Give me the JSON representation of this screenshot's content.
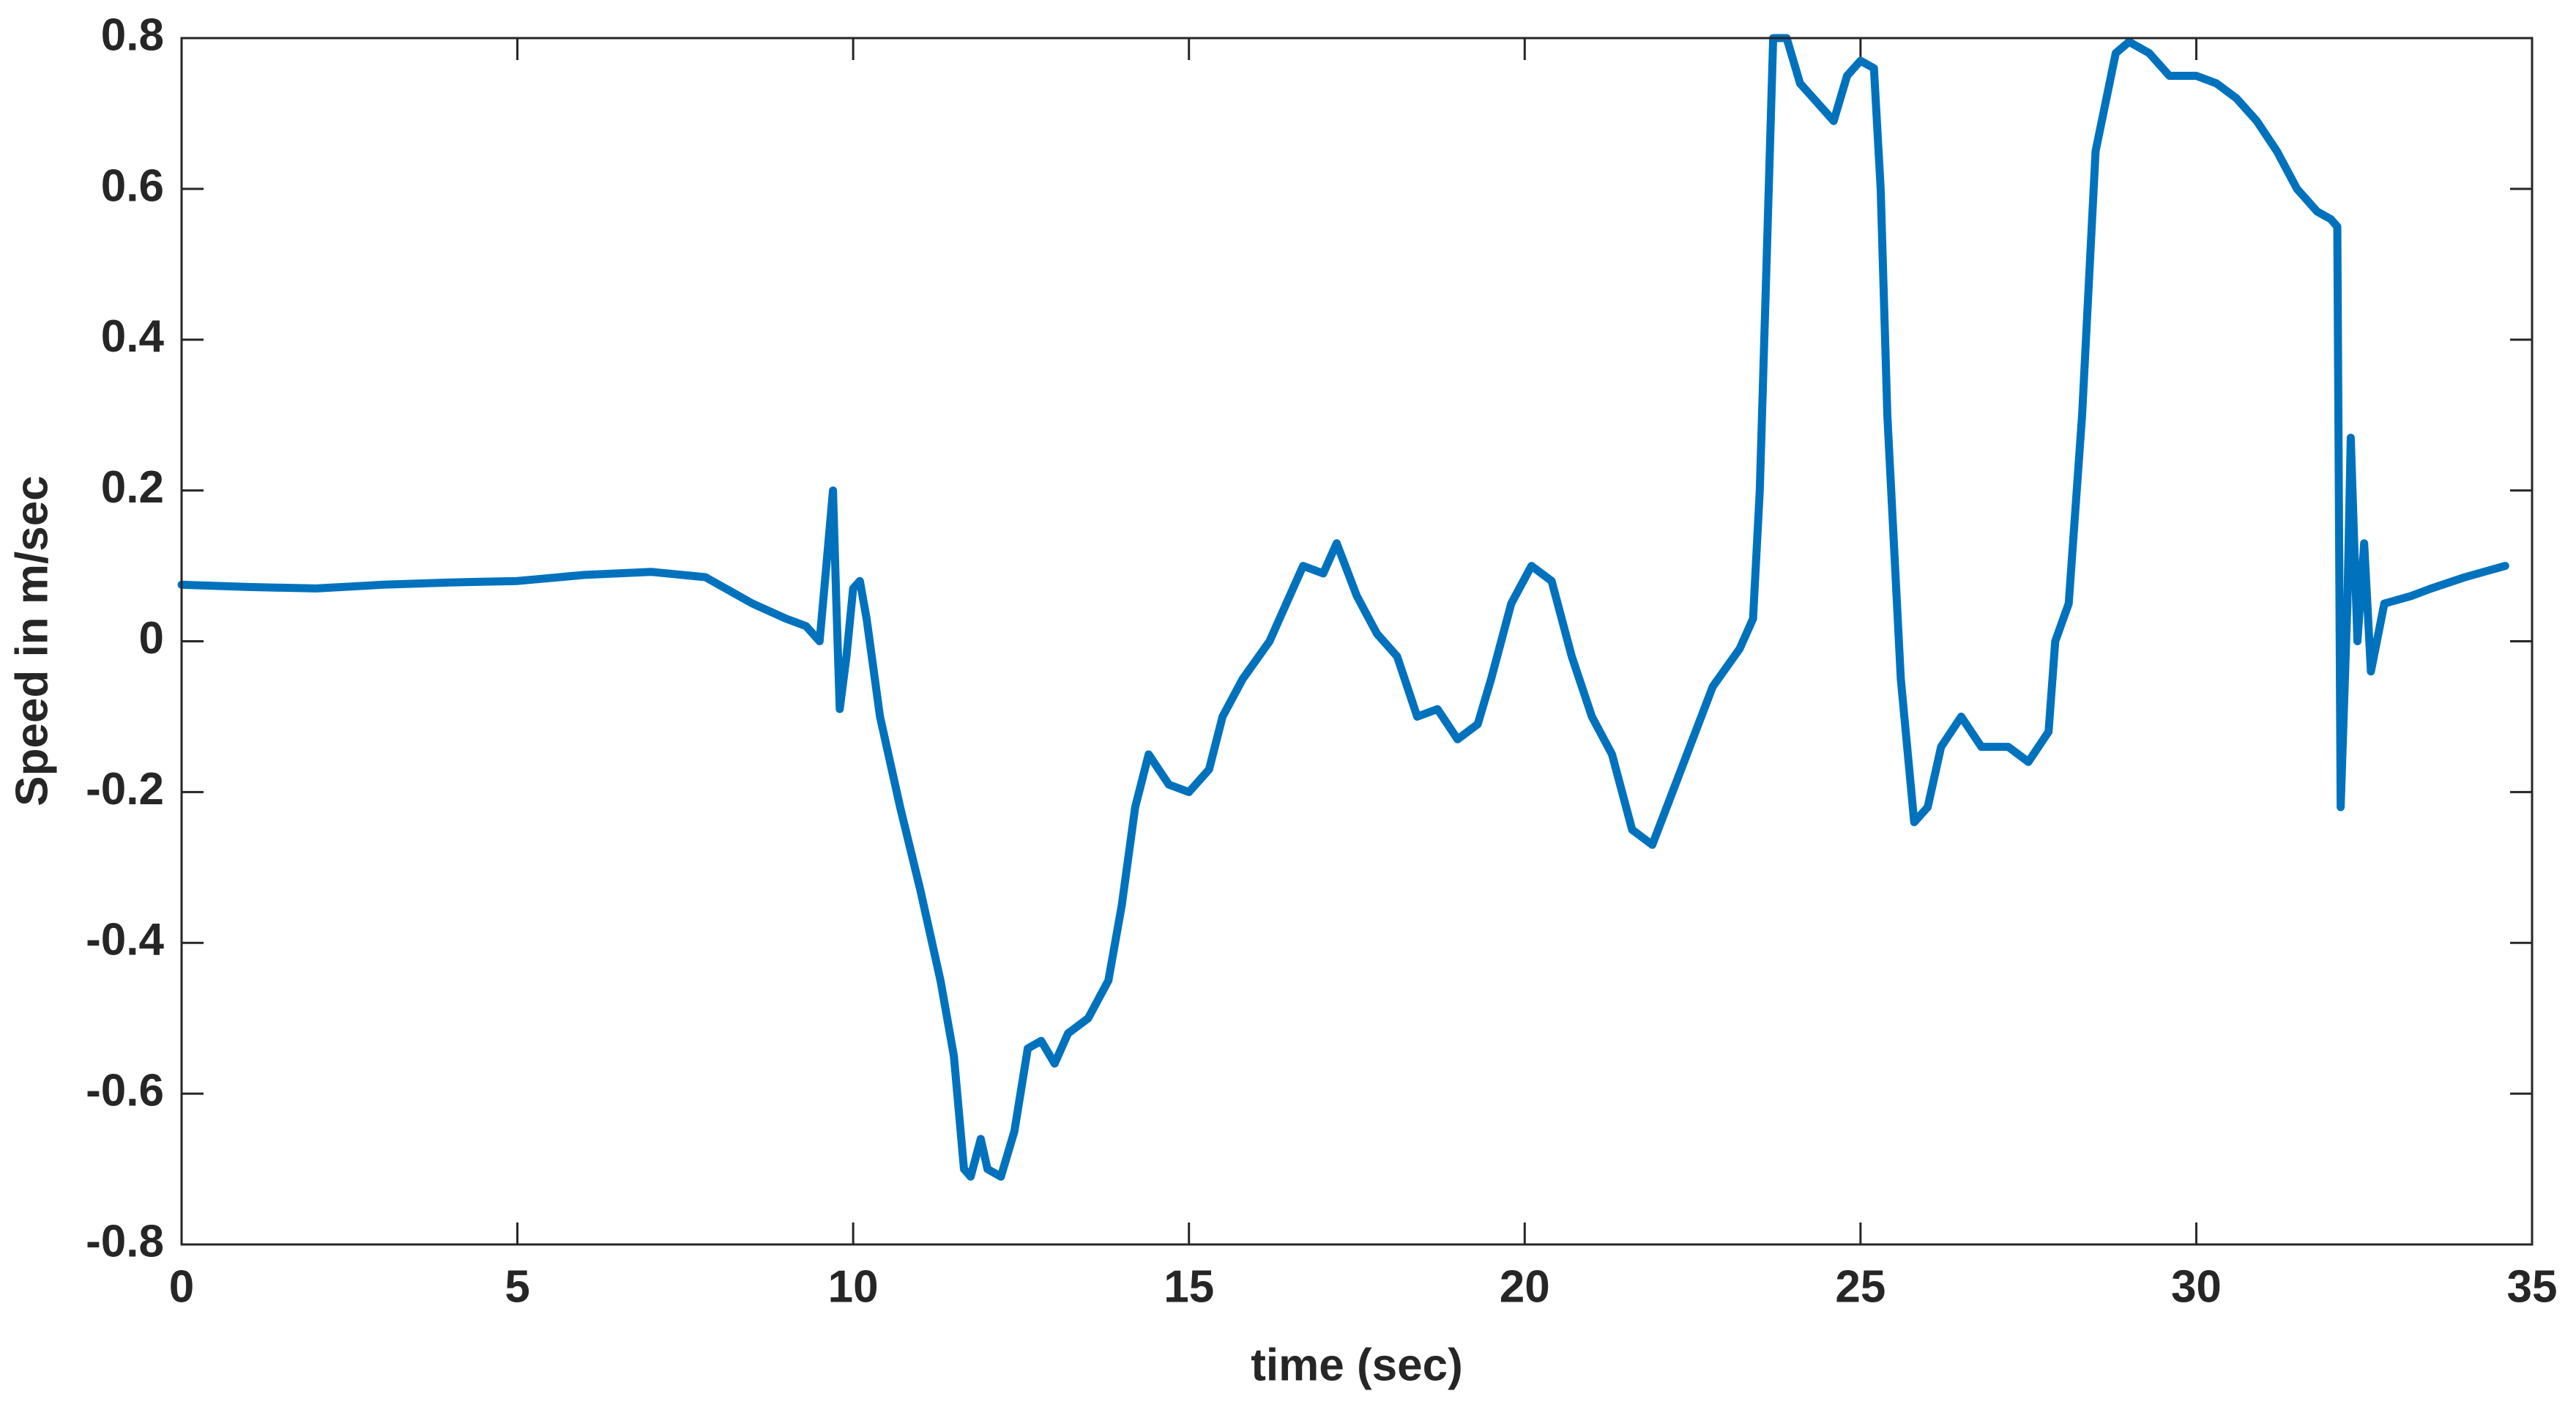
{
  "chart_data": {
    "type": "line",
    "xlabel": "time (sec)",
    "ylabel": "Speed in m/sec",
    "color": "#0072bd",
    "xlim": [
      0,
      35
    ],
    "ylim": [
      -0.8,
      0.8
    ],
    "xticks": [
      0,
      5,
      10,
      15,
      20,
      25,
      30,
      35
    ],
    "yticks": [
      -0.8,
      -0.6,
      -0.4,
      -0.2,
      0,
      0.2,
      0.4,
      0.6,
      0.8
    ],
    "x": [
      0,
      1,
      2,
      3,
      4,
      5,
      6,
      7,
      7.8,
      8.5,
      9,
      9.3,
      9.5,
      9.6,
      9.7,
      9.75,
      9.8,
      9.9,
      10.0,
      10.1,
      10.2,
      10.4,
      10.7,
      11,
      11.3,
      11.5,
      11.65,
      11.75,
      11.9,
      12.0,
      12.2,
      12.4,
      12.6,
      12.8,
      13.0,
      13.2,
      13.5,
      13.8,
      14.0,
      14.2,
      14.4,
      14.7,
      15,
      15.3,
      15.5,
      15.8,
      16.2,
      16.4,
      16.7,
      17,
      17.2,
      17.5,
      17.8,
      18.1,
      18.4,
      18.7,
      19.0,
      19.3,
      19.5,
      19.8,
      20.1,
      20.4,
      20.7,
      21,
      21.3,
      21.6,
      21.9,
      22.2,
      22.5,
      22.8,
      23.2,
      23.4,
      23.5,
      23.6,
      23.7,
      23.9,
      24.1,
      24.4,
      24.6,
      24.8,
      25,
      25.2,
      25.3,
      25.4,
      25.6,
      25.8,
      26,
      26.2,
      26.5,
      26.8,
      27.2,
      27.5,
      27.8,
      27.9,
      28.1,
      28.3,
      28.5,
      28.8,
      29,
      29.3,
      29.6,
      30,
      30.3,
      30.6,
      30.9,
      31.2,
      31.5,
      31.8,
      32.0,
      32.1,
      32.15,
      32.25,
      32.3,
      32.4,
      32.5,
      32.6,
      32.8,
      33.2,
      33.5,
      34,
      34.6
    ],
    "values": [
      0.075,
      0.072,
      0.07,
      0.075,
      0.078,
      0.08,
      0.088,
      0.092,
      0.085,
      0.05,
      0.03,
      0.02,
      0.0,
      0.1,
      0.2,
      0.05,
      -0.09,
      -0.02,
      0.07,
      0.08,
      0.03,
      -0.1,
      -0.22,
      -0.33,
      -0.45,
      -0.55,
      -0.7,
      -0.71,
      -0.66,
      -0.7,
      -0.71,
      -0.65,
      -0.54,
      -0.53,
      -0.56,
      -0.52,
      -0.5,
      -0.45,
      -0.35,
      -0.22,
      -0.15,
      -0.19,
      -0.2,
      -0.17,
      -0.1,
      -0.05,
      0.0,
      0.04,
      0.1,
      0.09,
      0.13,
      0.06,
      0.01,
      -0.02,
      -0.1,
      -0.09,
      -0.13,
      -0.11,
      -0.05,
      0.05,
      0.1,
      0.08,
      -0.02,
      -0.1,
      -0.15,
      -0.25,
      -0.27,
      -0.2,
      -0.13,
      -0.06,
      -0.01,
      0.03,
      0.2,
      0.5,
      0.8,
      0.8,
      0.74,
      0.71,
      0.69,
      0.75,
      0.77,
      0.76,
      0.6,
      0.3,
      -0.05,
      -0.24,
      -0.22,
      -0.14,
      -0.1,
      -0.14,
      -0.14,
      -0.16,
      -0.12,
      0.0,
      0.05,
      0.3,
      0.65,
      0.78,
      0.795,
      0.78,
      0.75,
      0.75,
      0.74,
      0.72,
      0.69,
      0.65,
      0.6,
      0.57,
      0.56,
      0.55,
      -0.22,
      0.05,
      0.27,
      0.0,
      0.13,
      -0.04,
      0.05,
      0.06,
      0.07,
      0.085,
      0.1
    ]
  }
}
